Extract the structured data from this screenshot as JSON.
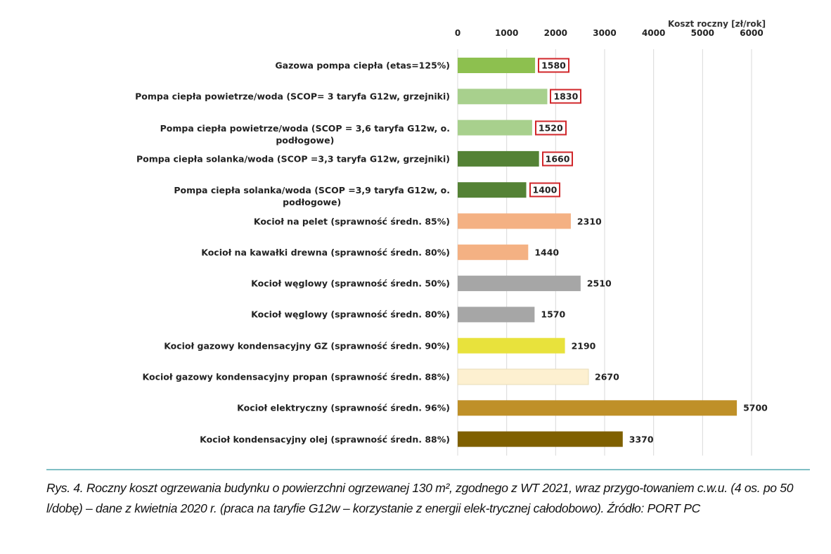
{
  "chart_data": {
    "type": "bar",
    "orientation": "horizontal",
    "title": "",
    "xlabel": "Koszt roczny [zł/rok]",
    "xlim": [
      0,
      6000
    ],
    "xticks": [
      "0",
      "1000",
      "2000",
      "3000",
      "4000",
      "5000",
      "6000"
    ],
    "grid": true,
    "categories": [
      [
        "Gazowa pompa ciepła (etas=125%)"
      ],
      [
        "Pompa ciepła powietrze/woda (SCOP= 3 taryfa G12w, grzejniki)"
      ],
      [
        "Pompa ciepła powietrze/woda (SCOP = 3,6 taryfa G12w, o.",
        "podłogowe)"
      ],
      [
        "Pompa ciepła solanka/woda (SCOP =3,3 taryfa G12w, grzejniki)"
      ],
      [
        "Pompa ciepła solanka/woda (SCOP =3,9 taryfa G12w, o.",
        "podłogowe)"
      ],
      [
        "Kocioł na pelet (sprawność średn. 85%)"
      ],
      [
        "Kocioł na kawałki drewna (sprawność średn. 80%)"
      ],
      [
        "Kocioł węglowy (sprawność średn. 50%)"
      ],
      [
        "Kocioł węglowy (sprawność średn. 80%)"
      ],
      [
        "Kocioł gazowy kondensacyjny GZ (sprawność średn. 90%)"
      ],
      [
        "Kocioł gazowy kondensacyjny propan (sprawność średn. 88%)"
      ],
      [
        "Kocioł elektryczny (sprawność średn. 96%)"
      ],
      [
        "Kocioł  kondensacyjny olej (sprawność średn. 88%)"
      ]
    ],
    "values": [
      1580,
      1830,
      1520,
      1660,
      1400,
      2310,
      1440,
      2510,
      1570,
      2190,
      2670,
      5700,
      3370
    ],
    "colors": [
      "#8dc04f",
      "#a8d08d",
      "#a8d08d",
      "#548235",
      "#548235",
      "#f4b183",
      "#f4b183",
      "#a6a6a6",
      "#a6a6a6",
      "#e8e23c",
      "#fdf0d0",
      "#bf9028",
      "#7f6000"
    ],
    "highlighted": [
      true,
      true,
      true,
      true,
      true,
      false,
      false,
      false,
      false,
      false,
      false,
      false,
      false
    ],
    "highlight_color": "#d0262a"
  },
  "caption": "Rys. 4. Roczny koszt ogrzewania budynku o powierzchni ogrzewanej 130 m², zgodnego z WT 2021, wraz przygo-towaniem c.w.u. (4 os. po 50 l/dobę) – dane z kwietnia 2020 r. (praca na taryfie G12w – korzystanie z energii elek-trycznej całodobowo). Źródło: PORT PC"
}
